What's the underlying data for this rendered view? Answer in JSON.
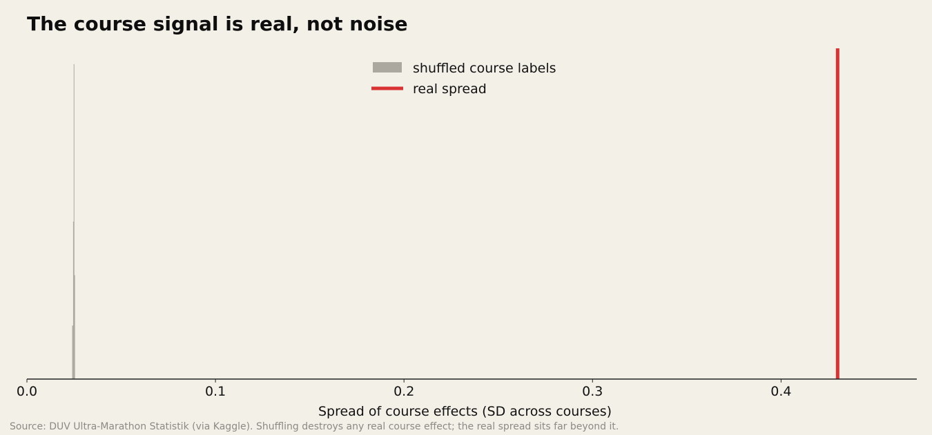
{
  "title": "The course signal is real, not noise",
  "source": "Source: DUV Ultra-Marathon Statistik (via Kaggle). Shuffling destroys any real course effect; the real spread sits far beyond it.",
  "colors": {
    "background": "#f3f0e8",
    "histogram": "#aaa89f",
    "real_line": "#d93232",
    "axis": "#222222",
    "source_text": "#8c8a85"
  },
  "chart_data": {
    "type": "bar",
    "title": "The course signal is real, not noise",
    "xlabel": "Spread of course effects (SD across courses)",
    "ylabel": "",
    "xlim": [
      0.0,
      0.472
    ],
    "xticks": [
      "0.0",
      "0.1",
      "0.2",
      "0.3",
      "0.4"
    ],
    "ylim": [
      0,
      1.05
    ],
    "grid": false,
    "legend_position": "top-center",
    "legend": [
      "shuffled course labels",
      "real spread"
    ],
    "histogram": {
      "name": "shuffled course labels",
      "bins": [
        {
          "x0": 0.024,
          "x1": 0.0245,
          "height": 0.17
        },
        {
          "x0": 0.0245,
          "x1": 0.0248,
          "height": 0.5
        },
        {
          "x0": 0.0248,
          "x1": 0.0251,
          "height": 1.0
        },
        {
          "x0": 0.0251,
          "x1": 0.0255,
          "height": 0.33
        }
      ]
    },
    "real_spread": {
      "name": "real spread",
      "x": 0.43
    }
  }
}
